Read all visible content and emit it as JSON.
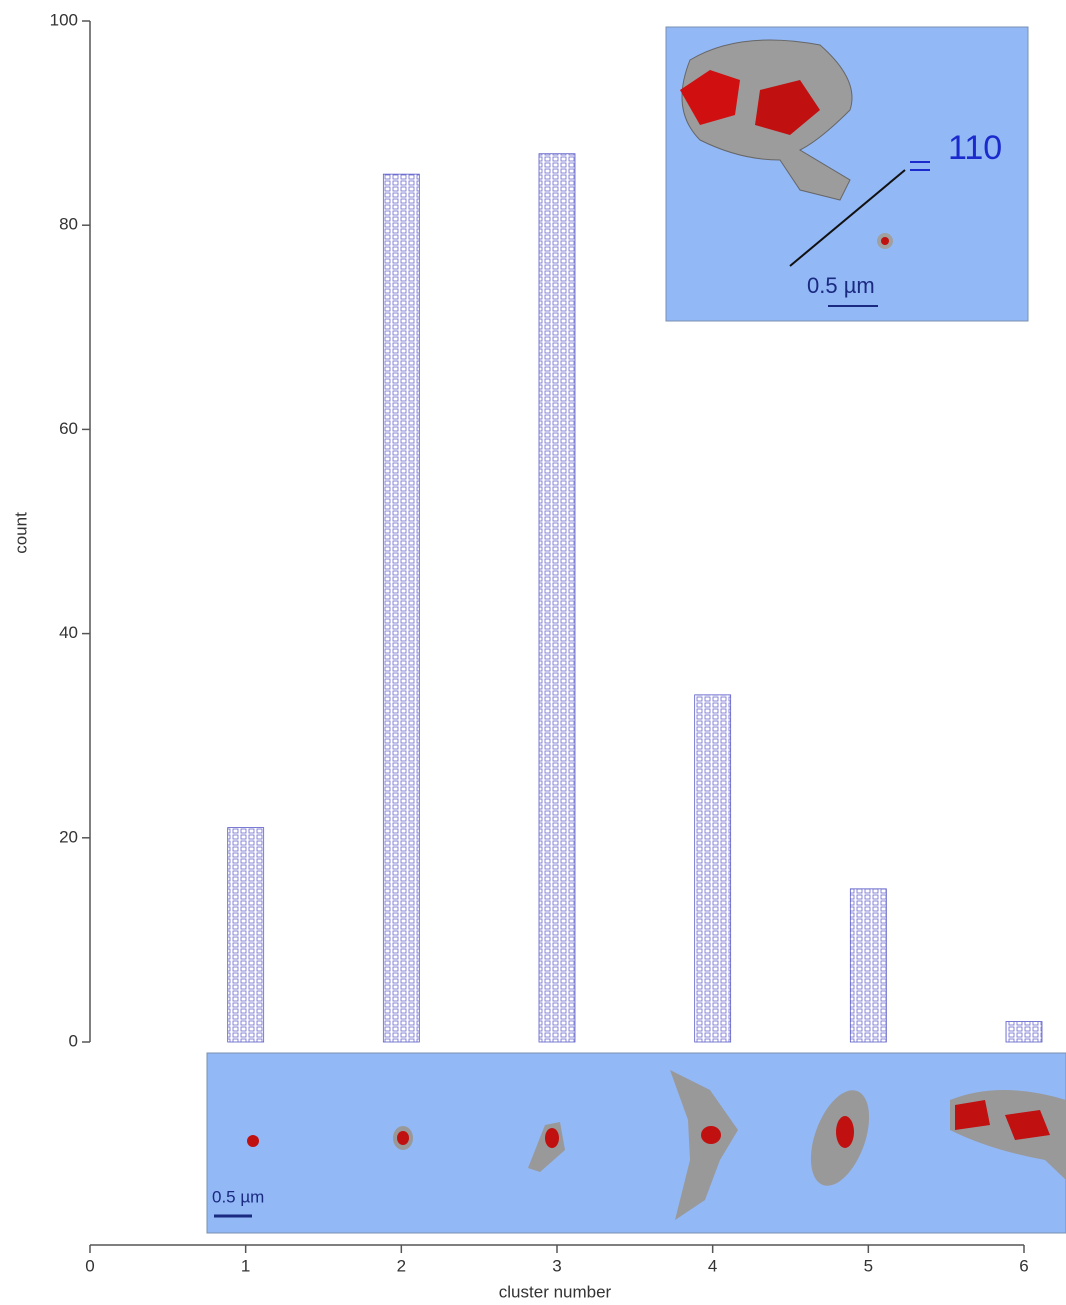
{
  "chart_data": {
    "type": "bar",
    "x_label": "cluster number",
    "y_label": "count",
    "x": [
      1,
      2,
      3,
      4,
      5,
      6
    ],
    "values": [
      21,
      85,
      87,
      34,
      15,
      2
    ],
    "color": "#5a5ac8",
    "xlim": [
      0,
      6
    ],
    "xticks": [
      0,
      1,
      2,
      3,
      4,
      5,
      6
    ],
    "ylim": [
      0,
      100
    ],
    "yticks": [
      0,
      20,
      40,
      60,
      80,
      100
    ],
    "annotations": [
      "110",
      "0.5 µm",
      "0.5 µm"
    ]
  }
}
